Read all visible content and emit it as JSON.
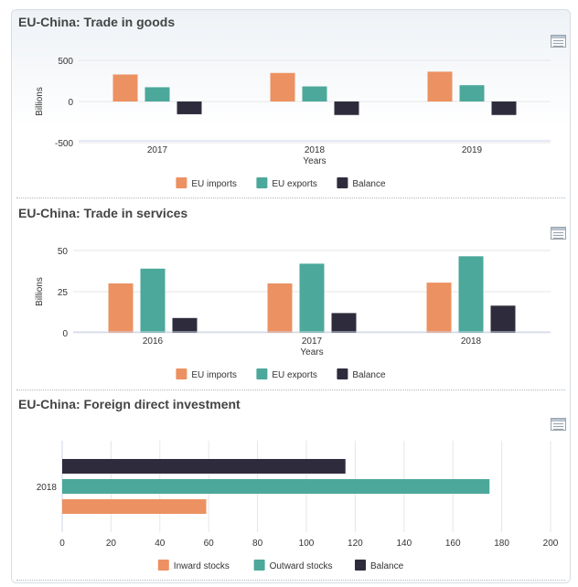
{
  "panels": [
    {
      "title": "EU-China: Trade in goods"
    },
    {
      "title": "EU-China: Trade in services"
    },
    {
      "title": "EU-China: Foreign direct investment"
    }
  ],
  "colors": {
    "imports": "#ec9161",
    "exports": "#4ba89a",
    "balance": "#2e2c3c",
    "grid": "#e6e6e6",
    "axis": "#ccd6eb"
  },
  "icons": {
    "menu": "data-table-icon"
  },
  "chart_data": [
    {
      "type": "bar",
      "title": "",
      "xlabel": "Years",
      "ylabel": "Billions",
      "categories": [
        "2017",
        "2018",
        "2019"
      ],
      "ylim": [
        -500,
        500
      ],
      "yticks": [
        500,
        0,
        -500
      ],
      "series": [
        {
          "name": "EU imports",
          "color": "#ec9161",
          "values": [
            328,
            347,
            362
          ]
        },
        {
          "name": "EU exports",
          "color": "#4ba89a",
          "values": [
            173,
            183,
            198
          ]
        },
        {
          "name": "Balance",
          "color": "#2e2c3c",
          "values": [
            -155,
            -164,
            -164
          ]
        }
      ],
      "legend": "bottom-center",
      "grid": true
    },
    {
      "type": "bar",
      "title": "",
      "xlabel": "Years",
      "ylabel": "Billions",
      "categories": [
        "2016",
        "2017",
        "2018"
      ],
      "ylim": [
        0,
        50
      ],
      "yticks": [
        50,
        25,
        0
      ],
      "series": [
        {
          "name": "EU imports",
          "color": "#ec9161",
          "values": [
            30,
            30,
            30.5
          ]
        },
        {
          "name": "EU exports",
          "color": "#4ba89a",
          "values": [
            39,
            42,
            46.5
          ]
        },
        {
          "name": "Balance",
          "color": "#2e2c3c",
          "values": [
            9,
            12,
            16.5
          ]
        }
      ],
      "legend": "bottom-center",
      "grid": true
    },
    {
      "type": "bar",
      "orientation": "horizontal",
      "title": "",
      "categories": [
        "2018"
      ],
      "xlim": [
        0,
        200
      ],
      "xticks": [
        0,
        20,
        40,
        60,
        80,
        100,
        120,
        140,
        160,
        180,
        200
      ],
      "series": [
        {
          "name": "Inward stocks",
          "color": "#ec9161",
          "values": [
            59
          ]
        },
        {
          "name": "Outward stocks",
          "color": "#4ba89a",
          "values": [
            175
          ]
        },
        {
          "name": "Balance",
          "color": "#2e2c3c",
          "values": [
            116
          ]
        }
      ],
      "legend": "bottom-center",
      "grid": true
    }
  ]
}
